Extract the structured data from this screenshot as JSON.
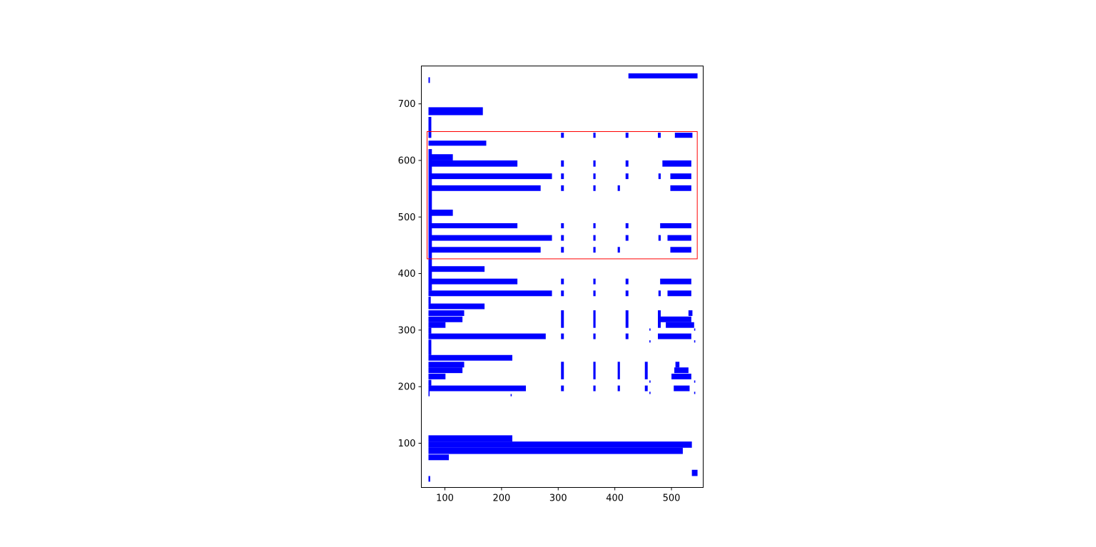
{
  "chart_data": {
    "type": "rectangles",
    "title": "",
    "xlabel": "",
    "ylabel": "",
    "xlim": [
      58.4,
      556
    ],
    "ylim": [
      21.8,
      767
    ],
    "grid": false,
    "xticks": [
      100,
      200,
      300,
      400,
      500
    ],
    "yticks": [
      100,
      200,
      300,
      400,
      500,
      600,
      700
    ],
    "fill_color": "#0000ff",
    "highlight_color": "#ff0000",
    "highlight_box": [
      68.5,
      426,
      477,
      225
    ],
    "rects": [
      [
        424,
        745,
        122,
        9
      ],
      [
        71,
        737,
        2.5,
        10
      ],
      [
        71,
        680,
        96,
        14
      ],
      [
        71,
        640,
        5,
        37
      ],
      [
        71,
        640,
        4,
        9
      ],
      [
        305,
        640,
        5,
        9
      ],
      [
        362,
        640,
        4,
        9
      ],
      [
        419,
        640,
        5,
        9
      ],
      [
        476,
        640,
        5,
        9
      ],
      [
        506,
        640,
        31,
        9
      ],
      [
        71,
        626,
        102,
        9
      ],
      [
        71,
        370,
        6,
        250
      ],
      [
        71,
        600,
        43,
        11
      ],
      [
        71,
        589,
        157,
        11
      ],
      [
        305,
        589,
        5,
        11
      ],
      [
        362,
        589,
        4,
        11
      ],
      [
        419,
        589,
        5,
        11
      ],
      [
        484,
        589,
        51,
        11
      ],
      [
        71,
        567,
        218,
        10
      ],
      [
        305,
        567,
        5,
        10
      ],
      [
        362,
        567,
        4,
        10
      ],
      [
        419,
        567,
        5,
        10
      ],
      [
        477,
        567,
        4,
        10
      ],
      [
        498,
        567,
        37,
        10
      ],
      [
        71,
        546,
        198,
        10
      ],
      [
        305,
        546,
        5,
        10
      ],
      [
        362,
        546,
        4,
        10
      ],
      [
        405,
        546,
        4,
        10
      ],
      [
        498,
        546,
        37,
        10
      ],
      [
        71,
        502,
        43,
        11
      ],
      [
        71,
        480,
        157,
        9
      ],
      [
        305,
        480,
        5,
        9
      ],
      [
        362,
        480,
        4,
        9
      ],
      [
        419,
        480,
        5,
        9
      ],
      [
        480,
        480,
        55,
        9
      ],
      [
        71,
        458,
        218,
        10
      ],
      [
        305,
        458,
        5,
        10
      ],
      [
        362,
        458,
        4,
        10
      ],
      [
        419,
        458,
        5,
        10
      ],
      [
        477,
        458,
        4,
        10
      ],
      [
        493,
        458,
        42,
        10
      ],
      [
        71,
        437,
        198,
        10
      ],
      [
        305,
        437,
        5,
        10
      ],
      [
        362,
        437,
        4,
        10
      ],
      [
        405,
        437,
        4,
        10
      ],
      [
        498,
        437,
        37,
        10
      ],
      [
        71,
        403,
        99,
        10
      ],
      [
        71,
        381,
        157,
        10
      ],
      [
        305,
        381,
        5,
        10
      ],
      [
        362,
        381,
        4,
        10
      ],
      [
        419,
        381,
        5,
        10
      ],
      [
        480,
        381,
        55,
        10
      ],
      [
        71,
        360,
        218,
        10
      ],
      [
        305,
        360,
        5,
        10
      ],
      [
        362,
        360,
        4,
        10
      ],
      [
        419,
        360,
        5,
        10
      ],
      [
        477,
        360,
        4,
        10
      ],
      [
        493,
        360,
        42,
        10
      ],
      [
        71,
        337,
        99,
        10
      ],
      [
        71,
        347,
        4,
        12
      ],
      [
        71,
        325,
        63,
        10
      ],
      [
        71,
        314,
        60,
        10
      ],
      [
        71,
        304,
        30,
        10
      ],
      [
        305,
        304,
        5,
        31
      ],
      [
        362,
        304,
        4,
        31
      ],
      [
        419,
        304,
        5,
        31
      ],
      [
        476,
        304,
        5,
        31
      ],
      [
        530,
        325,
        7,
        10
      ],
      [
        476,
        314,
        59,
        10
      ],
      [
        490,
        304,
        50,
        10
      ],
      [
        461,
        299,
        2,
        4
      ],
      [
        540,
        299,
        2,
        4
      ],
      [
        71,
        294,
        5,
        10
      ],
      [
        71,
        284,
        207,
        10
      ],
      [
        305,
        284,
        5,
        10
      ],
      [
        362,
        284,
        4,
        10
      ],
      [
        419,
        284,
        5,
        10
      ],
      [
        476,
        284,
        59,
        10
      ],
      [
        461,
        278,
        2,
        4
      ],
      [
        540,
        278,
        2,
        4
      ],
      [
        71,
        256,
        5,
        27
      ],
      [
        71,
        246,
        148,
        10
      ],
      [
        71,
        234,
        63,
        10
      ],
      [
        71,
        224,
        60,
        10
      ],
      [
        71,
        213,
        30,
        10
      ],
      [
        305,
        213,
        5,
        31
      ],
      [
        362,
        213,
        4,
        31
      ],
      [
        405,
        213,
        4,
        31
      ],
      [
        453,
        213,
        5,
        31
      ],
      [
        507,
        234,
        7,
        10
      ],
      [
        505,
        224,
        25,
        10
      ],
      [
        500,
        213,
        35,
        10
      ],
      [
        540,
        207,
        2,
        4
      ],
      [
        461,
        207,
        2,
        4
      ],
      [
        71,
        202,
        5,
        10
      ],
      [
        71,
        192,
        172,
        10
      ],
      [
        305,
        192,
        5,
        10
      ],
      [
        362,
        192,
        4,
        10
      ],
      [
        405,
        192,
        4,
        10
      ],
      [
        453,
        192,
        5,
        10
      ],
      [
        504,
        192,
        28,
        10
      ],
      [
        461,
        187,
        2,
        4
      ],
      [
        540,
        187,
        2,
        4
      ],
      [
        71,
        183,
        2,
        9
      ],
      [
        216,
        183,
        2,
        4
      ],
      [
        71,
        103,
        148,
        11
      ],
      [
        71,
        92,
        465,
        11
      ],
      [
        71,
        81,
        449,
        11
      ],
      [
        71,
        70,
        36,
        10
      ],
      [
        536,
        42,
        10,
        11
      ],
      [
        71,
        32,
        3,
        10
      ]
    ]
  }
}
